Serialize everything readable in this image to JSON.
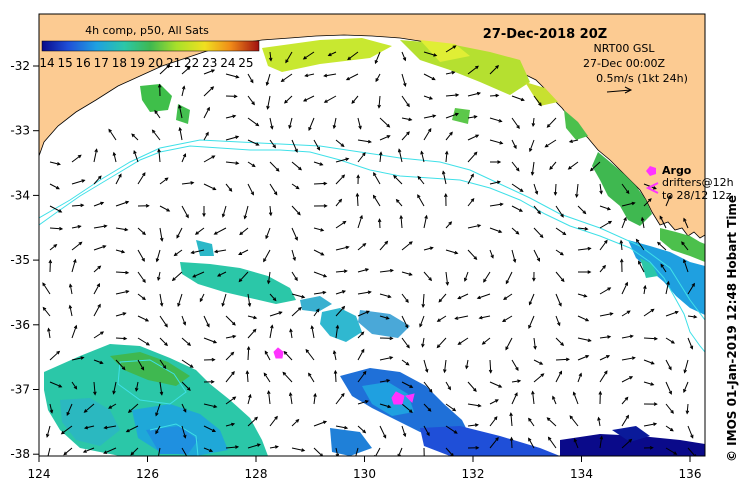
{
  "colorbar": {
    "title": "4h comp, p50, All Sats",
    "labels": [
      "14",
      "15",
      "16",
      "17",
      "18",
      "19",
      "20",
      "21",
      "22",
      "23",
      "24",
      "25"
    ],
    "min": 14,
    "max": 26
  },
  "header": {
    "date": "27-Dec-2018 20Z"
  },
  "current_info": {
    "line1": "NRT00 GSL",
    "line2": "27-Dec 00:00Z",
    "line3": "0.5m/s (1kt 24h)"
  },
  "legend": {
    "argo_label": "Argo",
    "drifters_line1": "drifters@12h",
    "drifters_line2": "to 28/12 12z"
  },
  "axes": {
    "x_ticks": [
      "124",
      "126",
      "128",
      "130",
      "132",
      "134",
      "136"
    ],
    "y_ticks": [
      "-32",
      "-33",
      "-34",
      "-35",
      "-36",
      "-37",
      "-38"
    ]
  },
  "credit": "©  IMOS 01-Jan-2019 12:48 Hobart Time",
  "colors": {
    "land": "#fccb92",
    "ocean": "#ffffff",
    "contour": "#3fe0e8",
    "marker": "#ff33ff",
    "arrow": "#000000"
  },
  "sst_patches": [
    {
      "id": "north-coast-yellow",
      "temp": 21.5
    },
    {
      "id": "north-coast-west",
      "temp": 20.0
    },
    {
      "id": "east-coast-green",
      "temp": 19.5
    },
    {
      "id": "east-coast-blue",
      "temp": 16.5
    },
    {
      "id": "central-band",
      "temp": 18.0
    },
    {
      "id": "southwest-cool",
      "temp": 17.5
    },
    {
      "id": "south-central-blue",
      "temp": 15.5
    },
    {
      "id": "south-east-deep",
      "temp": 14.2
    }
  ]
}
